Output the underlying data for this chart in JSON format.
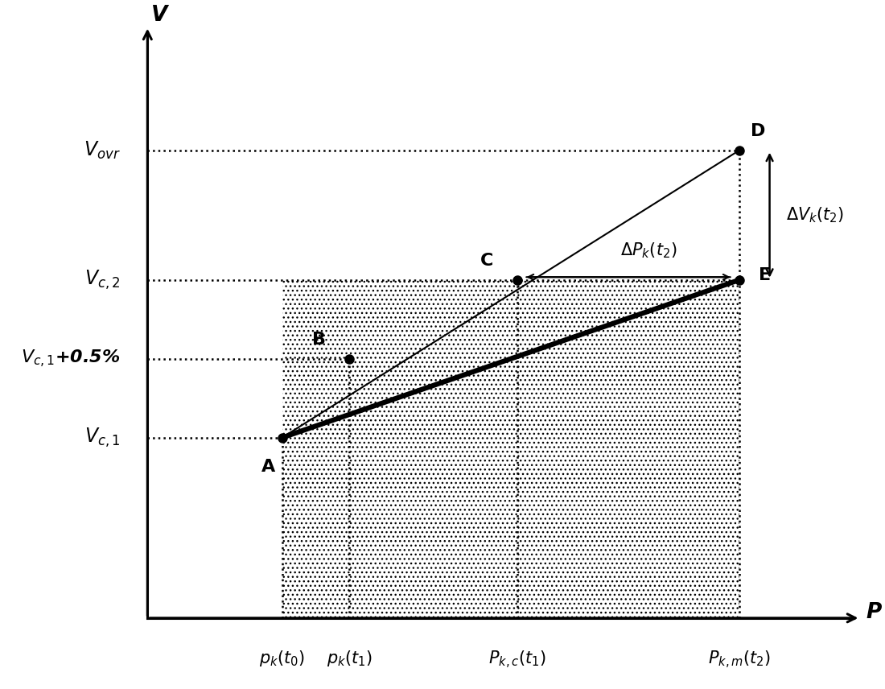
{
  "figsize": [
    11.0,
    8.56
  ],
  "dpi": 100,
  "bg_color": "#ffffff",
  "x_axis_label": "P",
  "y_axis_label": "V",
  "x_coords": {
    "pk_t0": 0.2,
    "pk_t1": 0.3,
    "Pkc_t1": 0.55,
    "Pkm_t2": 0.88
  },
  "y_coords": {
    "Vc1": 0.32,
    "Vc1_05": 0.46,
    "Vc2": 0.6,
    "Vovr": 0.83
  },
  "point_A": [
    0.2,
    0.32
  ],
  "point_B": [
    0.3,
    0.46
  ],
  "point_C": [
    0.55,
    0.6
  ],
  "point_D": [
    0.88,
    0.83
  ],
  "point_E": [
    0.88,
    0.6
  ],
  "thin_line_color": "#000000",
  "thick_line_color": "#000000",
  "label_fontsize": 17,
  "tick_label_fontsize": 15,
  "point_label_fontsize": 16,
  "annotation_fontsize": 15
}
